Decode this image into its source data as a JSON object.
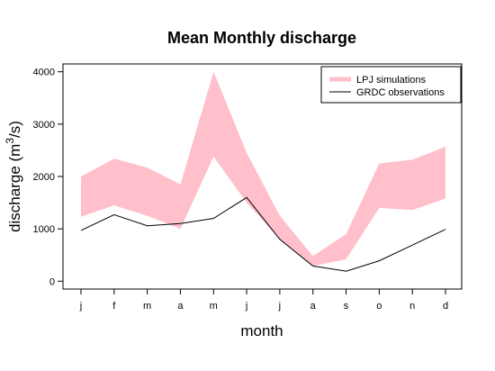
{
  "chart_data": {
    "type": "area",
    "title": "Mean Monthly discharge",
    "xlabel": "month",
    "ylabel_main": "discharge (m",
    "ylabel_sup": "3",
    "ylabel_tail": "/s)",
    "categories": [
      "j",
      "f",
      "m",
      "a",
      "m",
      "j",
      "j",
      "a",
      "s",
      "o",
      "n",
      "d"
    ],
    "ylim": [
      -150,
      4150
    ],
    "yticks": [
      "0",
      "1000",
      "2000",
      "3000",
      "4000"
    ],
    "ytick_values": [
      0,
      1000,
      2000,
      3000,
      4000
    ],
    "grid": false,
    "legend_position": "top-right",
    "series": [
      {
        "name": "LPJ simulations",
        "kind": "band",
        "color": "#ffc0cb",
        "upper": [
          2000,
          2340,
          2170,
          1850,
          4000,
          2450,
          1250,
          480,
          900,
          2250,
          2320,
          2570
        ],
        "lower": [
          1230,
          1450,
          1250,
          1000,
          2380,
          1500,
          800,
          290,
          420,
          1400,
          1360,
          1580
        ]
      },
      {
        "name": "GRDC observations",
        "kind": "line",
        "color": "#000000",
        "values": [
          970,
          1270,
          1060,
          1100,
          1200,
          1600,
          800,
          290,
          190,
          390,
          690,
          990
        ]
      }
    ]
  }
}
